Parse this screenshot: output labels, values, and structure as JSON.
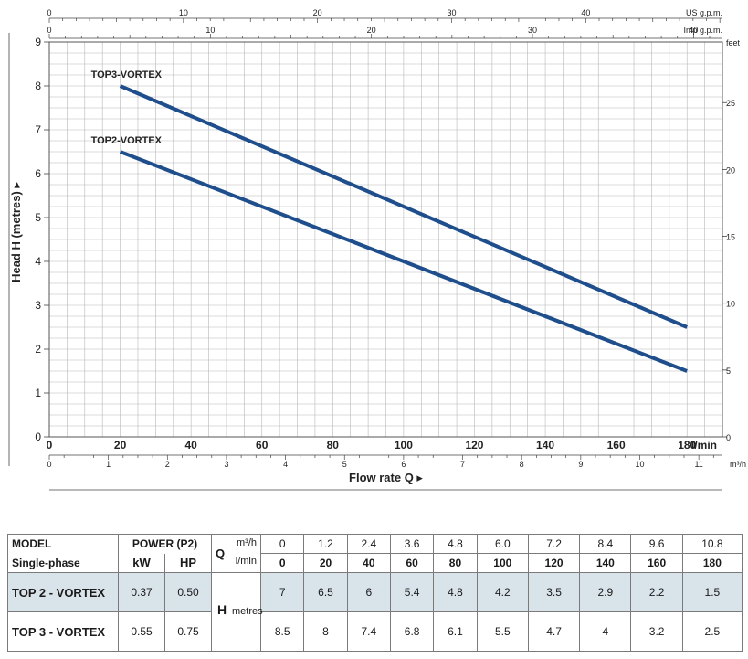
{
  "chart_data": {
    "type": "line",
    "xlabel": "Flow rate Q",
    "ylabel": "Head H  (metres)",
    "xlim": [
      0,
      190
    ],
    "ylim": [
      0,
      9
    ],
    "x_unit": "l/min",
    "y_ticks": [
      "0",
      "1",
      "2",
      "3",
      "4",
      "5",
      "6",
      "7",
      "8",
      "9"
    ],
    "x_ticks_lmin": [
      "0",
      "20",
      "40",
      "60",
      "80",
      "100",
      "120",
      "140",
      "160",
      "180"
    ],
    "x_ticks_m3h": [
      "0",
      "1",
      "2",
      "3",
      "4",
      "5",
      "6",
      "7",
      "8",
      "9",
      "10",
      "11"
    ],
    "x_unit_m3h": "m³/h",
    "top_ticks_usgpm": [
      "0",
      "10",
      "20",
      "30",
      "40"
    ],
    "top_unit_usgpm": "US g.p.m.",
    "top_ticks_impgpm": [
      "0",
      "10",
      "20",
      "30",
      "40"
    ],
    "top_unit_impgpm": "Imp g.p.m.",
    "right_ticks_feet": [
      "0",
      "5",
      "10",
      "15",
      "20",
      "25"
    ],
    "right_unit_feet": "feet",
    "grid": true,
    "series": [
      {
        "name": "TOP3-VORTEX",
        "x": [
          20,
          180
        ],
        "y": [
          8.0,
          2.5
        ]
      },
      {
        "name": "TOP2-VORTEX",
        "x": [
          20,
          180
        ],
        "y": [
          6.5,
          1.5
        ]
      }
    ],
    "curve_color": "#1f4e8c"
  },
  "table": {
    "model_label": "MODEL",
    "phase_label": "Single-phase",
    "power_label": "POWER (P2)",
    "kw_label": "kW",
    "hp_label": "HP",
    "q_label": "Q",
    "q_unit_m3h": "m³/h",
    "q_unit_lmin": "l/min",
    "h_label": "H",
    "h_unit": "metres",
    "q_m3h": [
      "0",
      "1.2",
      "2.4",
      "3.6",
      "4.8",
      "6.0",
      "7.2",
      "8.4",
      "9.6",
      "10.8"
    ],
    "q_lmin": [
      "0",
      "20",
      "40",
      "60",
      "80",
      "100",
      "120",
      "140",
      "160",
      "180"
    ],
    "rows": [
      {
        "model": "TOP 2 - VORTEX",
        "kw": "0.37",
        "hp": "0.50",
        "h": [
          "7",
          "6.5",
          "6",
          "5.4",
          "4.8",
          "4.2",
          "3.5",
          "2.9",
          "2.2",
          "1.5"
        ]
      },
      {
        "model": "TOP 3 - VORTEX",
        "kw": "0.55",
        "hp": "0.75",
        "h": [
          "8.5",
          "8",
          "7.4",
          "6.8",
          "6.1",
          "5.5",
          "4.7",
          "4",
          "3.2",
          "2.5"
        ]
      }
    ]
  }
}
